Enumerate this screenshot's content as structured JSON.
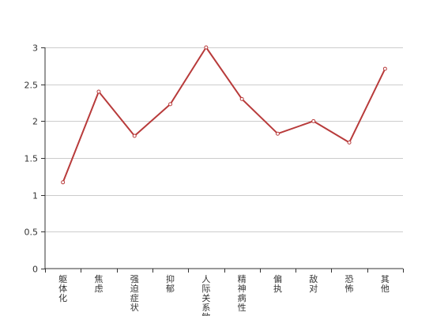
{
  "chart_data": {
    "type": "line",
    "categories": [
      "躯体化",
      "焦虑",
      "强迫症状",
      "抑郁",
      "人际关系敏感",
      "精神病性",
      "偏执",
      "敌对",
      "恐怖",
      "其他"
    ],
    "series": [
      {
        "name": "",
        "values": [
          1.17,
          2.4,
          1.8,
          2.23,
          3.0,
          2.3,
          1.83,
          2.0,
          1.71,
          2.71
        ],
        "color": "#b83b3b"
      }
    ],
    "yticks": [
      "0",
      "0.5",
      "1",
      "1.5",
      "2",
      "2.5",
      "3"
    ],
    "ylim": [
      0,
      3
    ],
    "title": "",
    "xlabel": "",
    "ylabel": "",
    "grid": true
  }
}
